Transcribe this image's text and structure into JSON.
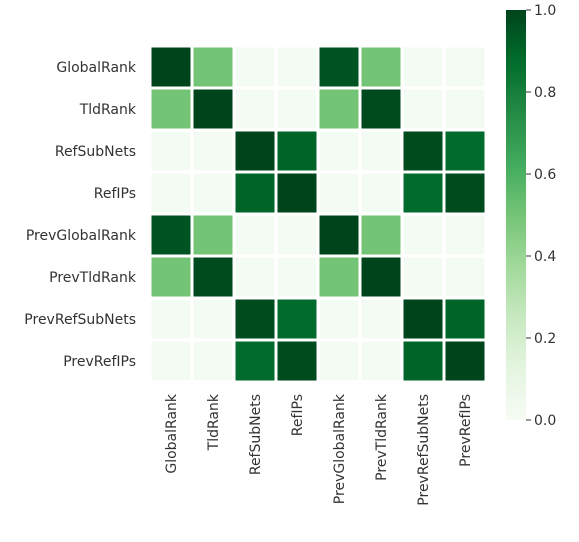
{
  "chart_data": {
    "type": "heatmap",
    "title": "",
    "xlabel": "",
    "ylabel": "",
    "rows": [
      "GlobalRank",
      "TldRank",
      "RefSubNets",
      "RefIPs",
      "PrevGlobalRank",
      "PrevTldRank",
      "PrevRefSubNets",
      "PrevRefIPs"
    ],
    "columns": [
      "GlobalRank",
      "TldRank",
      "RefSubNets",
      "RefIPs",
      "PrevGlobalRank",
      "PrevTldRank",
      "PrevRefSubNets",
      "PrevRefIPs"
    ],
    "values": [
      [
        1.0,
        0.5,
        0.02,
        0.02,
        0.95,
        0.5,
        0.02,
        0.02
      ],
      [
        0.5,
        1.0,
        0.02,
        0.02,
        0.5,
        0.98,
        0.02,
        0.02
      ],
      [
        0.02,
        0.02,
        1.0,
        0.9,
        0.02,
        0.02,
        0.98,
        0.88
      ],
      [
        0.02,
        0.02,
        0.9,
        1.0,
        0.02,
        0.02,
        0.88,
        0.98
      ],
      [
        0.95,
        0.5,
        0.02,
        0.02,
        1.0,
        0.5,
        0.02,
        0.02
      ],
      [
        0.5,
        0.98,
        0.02,
        0.02,
        0.5,
        1.0,
        0.02,
        0.02
      ],
      [
        0.02,
        0.02,
        0.98,
        0.88,
        0.02,
        0.02,
        1.0,
        0.9
      ],
      [
        0.02,
        0.02,
        0.88,
        0.98,
        0.02,
        0.02,
        0.9,
        1.0
      ]
    ],
    "colorbar": {
      "range": [
        0.0,
        1.0
      ],
      "ticks": [
        "0.0",
        "0.2",
        "0.4",
        "0.6",
        "0.8",
        "1.0"
      ],
      "colormap": "Greens",
      "low_color": "#f7fcf5",
      "high_color": "#00441b"
    },
    "cell_border_color": "#ffffff"
  }
}
